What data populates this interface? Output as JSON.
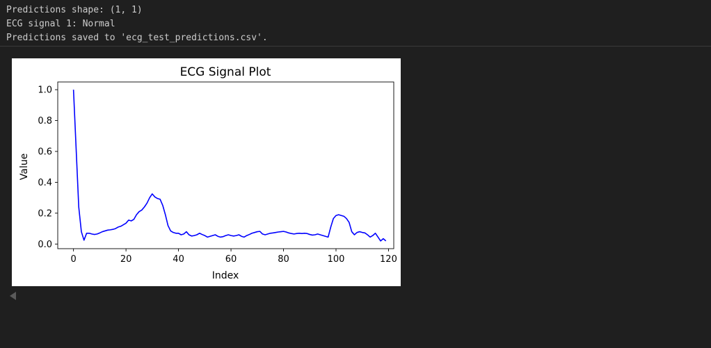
{
  "output": {
    "lines": [
      "Predictions shape: (1, 1)",
      "ECG signal 1: Normal",
      "Predictions saved to 'ecg_test_predictions.csv'."
    ]
  },
  "icons": {
    "scroll_left": "triangle-left-icon"
  },
  "chart_data": {
    "type": "line",
    "title": "ECG Signal Plot",
    "xlabel": "Index",
    "ylabel": "Value",
    "xlim": [
      -6,
      122
    ],
    "ylim": [
      -0.03,
      1.05
    ],
    "grid": false,
    "x_ticks": [
      0,
      20,
      40,
      60,
      80,
      100,
      120
    ],
    "x_tick_labels": [
      "0",
      "20",
      "40",
      "60",
      "80",
      "100",
      "120"
    ],
    "y_ticks": [
      0.0,
      0.2,
      0.4,
      0.6,
      0.8,
      1.0
    ],
    "y_tick_labels": [
      "0.0",
      "0.2",
      "0.4",
      "0.6",
      "0.8",
      "1.0"
    ],
    "series": [
      {
        "color": "#0000ff",
        "x": [
          0,
          1,
          2,
          3,
          4,
          5,
          6,
          7,
          8,
          9,
          10,
          11,
          12,
          13,
          14,
          15,
          16,
          17,
          18,
          19,
          20,
          21,
          22,
          23,
          24,
          25,
          26,
          27,
          28,
          29,
          30,
          31,
          32,
          33,
          34,
          35,
          36,
          37,
          38,
          39,
          40,
          41,
          42,
          43,
          44,
          45,
          46,
          47,
          48,
          49,
          50,
          51,
          52,
          53,
          54,
          55,
          56,
          57,
          58,
          59,
          60,
          61,
          62,
          63,
          64,
          65,
          66,
          67,
          68,
          69,
          70,
          71,
          72,
          73,
          74,
          75,
          76,
          77,
          78,
          79,
          80,
          81,
          82,
          83,
          84,
          85,
          86,
          87,
          88,
          89,
          90,
          91,
          92,
          93,
          94,
          95,
          96,
          97,
          98,
          99,
          100,
          101,
          102,
          103,
          104,
          105,
          106,
          107,
          108,
          109,
          110,
          111,
          112,
          113,
          114,
          115,
          116,
          117,
          118,
          119
        ],
        "values": [
          1.0,
          0.62,
          0.24,
          0.08,
          0.025,
          0.07,
          0.07,
          0.065,
          0.062,
          0.065,
          0.072,
          0.08,
          0.085,
          0.09,
          0.092,
          0.095,
          0.1,
          0.11,
          0.115,
          0.125,
          0.135,
          0.155,
          0.15,
          0.16,
          0.19,
          0.21,
          0.22,
          0.24,
          0.265,
          0.3,
          0.325,
          0.305,
          0.295,
          0.29,
          0.25,
          0.19,
          0.12,
          0.085,
          0.075,
          0.07,
          0.07,
          0.06,
          0.065,
          0.08,
          0.06,
          0.052,
          0.055,
          0.06,
          0.07,
          0.062,
          0.055,
          0.045,
          0.05,
          0.055,
          0.06,
          0.05,
          0.045,
          0.048,
          0.055,
          0.06,
          0.055,
          0.052,
          0.055,
          0.06,
          0.05,
          0.045,
          0.055,
          0.062,
          0.07,
          0.075,
          0.08,
          0.082,
          0.065,
          0.06,
          0.065,
          0.07,
          0.072,
          0.075,
          0.078,
          0.08,
          0.082,
          0.078,
          0.072,
          0.068,
          0.065,
          0.068,
          0.07,
          0.068,
          0.07,
          0.068,
          0.062,
          0.058,
          0.06,
          0.065,
          0.06,
          0.055,
          0.05,
          0.045,
          0.11,
          0.165,
          0.185,
          0.19,
          0.185,
          0.18,
          0.165,
          0.14,
          0.08,
          0.06,
          0.075,
          0.08,
          0.075,
          0.072,
          0.06,
          0.045,
          0.055,
          0.07,
          0.045,
          0.02,
          0.035,
          0.02
        ]
      }
    ]
  }
}
